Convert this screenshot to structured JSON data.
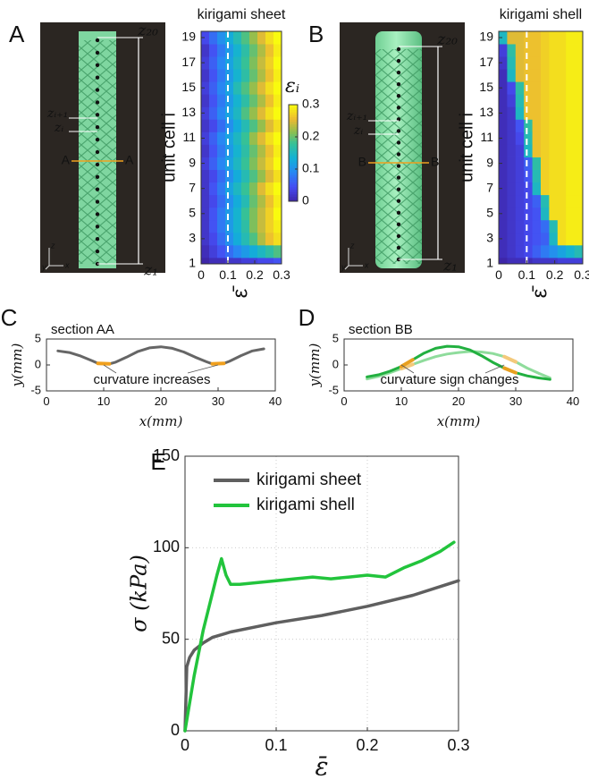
{
  "photos": [
    {
      "panel": "A",
      "top_label": "z₂₀",
      "upper_label": "zᵢ₊₁",
      "lower_label": "zᵢ",
      "section_left": "A",
      "section_right": "A",
      "bottom_label": "z₁",
      "axes": [
        "z",
        "y",
        "x"
      ]
    },
    {
      "panel": "B",
      "top_label": "z₂₀",
      "upper_label": "zᵢ₊₁",
      "lower_label": "zᵢ",
      "section_left": "B",
      "section_right": "B",
      "bottom_label": "z₁",
      "axes": [
        "z",
        "y",
        "x"
      ]
    }
  ],
  "chart_data": [
    {
      "type": "heatmap",
      "title": "kirigami sheet",
      "title_color": "#888888",
      "ylabel": "unit cell i",
      "xlabel": "ε̄",
      "x": [
        0.015,
        0.045,
        0.075,
        0.105,
        0.135,
        0.165,
        0.195,
        0.225,
        0.255,
        0.285
      ],
      "y": [
        1,
        2,
        3,
        4,
        5,
        6,
        7,
        8,
        9,
        10,
        11,
        12,
        13,
        14,
        15,
        16,
        17,
        18,
        19
      ],
      "xlim": [
        0,
        0.3
      ],
      "ylim": [
        1,
        19.5
      ],
      "xticks": [
        0,
        0.1,
        0.2,
        0.3
      ],
      "yticks": [
        1,
        3,
        5,
        7,
        9,
        11,
        13,
        15,
        17,
        19
      ],
      "clim": [
        0,
        0.3
      ],
      "marker_x": 0.1,
      "colorbar": {
        "label": "εᵢ",
        "ticks": [
          0,
          0.1,
          0.2,
          0.3
        ]
      },
      "z": [
        [
          0,
          0.01,
          0.01,
          0.02,
          0.02,
          0.03,
          0.03,
          0.04,
          0.04,
          0.05
        ],
        [
          0.01,
          0.03,
          0.05,
          0.07,
          0.09,
          0.11,
          0.13,
          0.15,
          0.17,
          0.19
        ],
        [
          0.02,
          0.04,
          0.07,
          0.1,
          0.13,
          0.16,
          0.19,
          0.23,
          0.26,
          0.28
        ],
        [
          0.02,
          0.05,
          0.08,
          0.11,
          0.14,
          0.17,
          0.21,
          0.24,
          0.27,
          0.29
        ],
        [
          0.02,
          0.05,
          0.08,
          0.11,
          0.14,
          0.18,
          0.21,
          0.24,
          0.27,
          0.3
        ],
        [
          0.02,
          0.04,
          0.07,
          0.1,
          0.13,
          0.16,
          0.2,
          0.23,
          0.26,
          0.29
        ],
        [
          0.02,
          0.05,
          0.08,
          0.12,
          0.15,
          0.18,
          0.21,
          0.25,
          0.28,
          0.3
        ],
        [
          0.02,
          0.04,
          0.07,
          0.1,
          0.13,
          0.16,
          0.19,
          0.22,
          0.25,
          0.28
        ],
        [
          0.03,
          0.06,
          0.09,
          0.12,
          0.15,
          0.18,
          0.21,
          0.24,
          0.27,
          0.3
        ],
        [
          0.02,
          0.05,
          0.08,
          0.11,
          0.14,
          0.17,
          0.2,
          0.23,
          0.26,
          0.29
        ],
        [
          0.03,
          0.06,
          0.09,
          0.12,
          0.15,
          0.18,
          0.22,
          0.25,
          0.28,
          0.3
        ],
        [
          0.02,
          0.04,
          0.07,
          0.1,
          0.13,
          0.16,
          0.19,
          0.22,
          0.25,
          0.28
        ],
        [
          0.03,
          0.06,
          0.09,
          0.12,
          0.15,
          0.19,
          0.22,
          0.25,
          0.28,
          0.3
        ],
        [
          0.02,
          0.05,
          0.08,
          0.11,
          0.14,
          0.17,
          0.2,
          0.23,
          0.26,
          0.29
        ],
        [
          0.03,
          0.06,
          0.09,
          0.12,
          0.16,
          0.19,
          0.22,
          0.25,
          0.28,
          0.3
        ],
        [
          0.02,
          0.05,
          0.08,
          0.11,
          0.14,
          0.17,
          0.2,
          0.23,
          0.26,
          0.29
        ],
        [
          0.03,
          0.06,
          0.09,
          0.12,
          0.15,
          0.18,
          0.21,
          0.24,
          0.27,
          0.3
        ],
        [
          0.02,
          0.05,
          0.08,
          0.11,
          0.14,
          0.17,
          0.2,
          0.23,
          0.26,
          0.29
        ],
        [
          0.04,
          0.07,
          0.1,
          0.13,
          0.16,
          0.19,
          0.22,
          0.25,
          0.28,
          0.3
        ]
      ]
    },
    {
      "type": "heatmap",
      "title": "kirigami shell",
      "title_color": "#22c43c",
      "ylabel": "unit cell i",
      "xlabel": "ε̄",
      "x": [
        0.015,
        0.045,
        0.075,
        0.105,
        0.135,
        0.165,
        0.195,
        0.225,
        0.255,
        0.285
      ],
      "y": [
        1,
        2,
        3,
        4,
        5,
        6,
        7,
        8,
        9,
        10,
        11,
        12,
        13,
        14,
        15,
        16,
        17,
        18,
        19
      ],
      "xlim": [
        0,
        0.3
      ],
      "ylim": [
        1,
        19.5
      ],
      "xticks": [
        0,
        0.1,
        0.2,
        0.3
      ],
      "yticks": [
        1,
        3,
        5,
        7,
        9,
        11,
        13,
        15,
        17,
        19
      ],
      "clim": [
        0,
        0.3
      ],
      "marker_x": 0.1,
      "z": [
        [
          0,
          0.01,
          0.01,
          0.01,
          0.02,
          0.02,
          0.02,
          0.03,
          0.03,
          0.03
        ],
        [
          0.01,
          0.02,
          0.03,
          0.04,
          0.06,
          0.08,
          0.1,
          0.12,
          0.14,
          0.16
        ],
        [
          0.01,
          0.02,
          0.03,
          0.04,
          0.05,
          0.06,
          0.15,
          0.28,
          0.29,
          0.29
        ],
        [
          0.01,
          0.02,
          0.03,
          0.04,
          0.05,
          0.07,
          0.16,
          0.28,
          0.29,
          0.29
        ],
        [
          0.01,
          0.02,
          0.03,
          0.04,
          0.05,
          0.15,
          0.28,
          0.28,
          0.29,
          0.29
        ],
        [
          0.01,
          0.02,
          0.03,
          0.04,
          0.06,
          0.16,
          0.28,
          0.28,
          0.29,
          0.29
        ],
        [
          0.01,
          0.02,
          0.03,
          0.04,
          0.15,
          0.27,
          0.28,
          0.28,
          0.29,
          0.29
        ],
        [
          0.01,
          0.02,
          0.03,
          0.05,
          0.16,
          0.27,
          0.28,
          0.28,
          0.29,
          0.29
        ],
        [
          0.01,
          0.02,
          0.03,
          0.06,
          0.17,
          0.27,
          0.28,
          0.28,
          0.29,
          0.29
        ],
        [
          0.01,
          0.02,
          0.03,
          0.15,
          0.26,
          0.27,
          0.28,
          0.28,
          0.29,
          0.29
        ],
        [
          0.01,
          0.02,
          0.04,
          0.16,
          0.26,
          0.27,
          0.28,
          0.28,
          0.29,
          0.29
        ],
        [
          0.01,
          0.02,
          0.05,
          0.17,
          0.26,
          0.27,
          0.28,
          0.28,
          0.29,
          0.29
        ],
        [
          0.01,
          0.02,
          0.15,
          0.26,
          0.26,
          0.27,
          0.28,
          0.28,
          0.29,
          0.29
        ],
        [
          0.01,
          0.03,
          0.16,
          0.26,
          0.26,
          0.27,
          0.28,
          0.28,
          0.29,
          0.29
        ],
        [
          0.01,
          0.04,
          0.17,
          0.26,
          0.26,
          0.27,
          0.28,
          0.28,
          0.29,
          0.29
        ],
        [
          0.01,
          0.15,
          0.25,
          0.26,
          0.26,
          0.27,
          0.28,
          0.28,
          0.29,
          0.29
        ],
        [
          0.02,
          0.16,
          0.25,
          0.26,
          0.26,
          0.27,
          0.28,
          0.28,
          0.29,
          0.29
        ],
        [
          0.03,
          0.17,
          0.25,
          0.26,
          0.26,
          0.27,
          0.28,
          0.28,
          0.29,
          0.29
        ],
        [
          0.15,
          0.25,
          0.25,
          0.26,
          0.26,
          0.27,
          0.28,
          0.28,
          0.29,
          0.29
        ]
      ]
    },
    {
      "type": "line",
      "panel": "C",
      "title": "section AA",
      "xlabel": "x(mm)",
      "ylabel": "y(mm)",
      "annotation": "curvature increases",
      "xlim": [
        0,
        40
      ],
      "ylim": [
        -5,
        5
      ],
      "xticks": [
        0,
        10,
        20,
        30,
        40
      ],
      "yticks": [
        -5,
        0,
        5
      ],
      "x": [
        2,
        4,
        6,
        8,
        9,
        11,
        12,
        14,
        16,
        18,
        20,
        22,
        24,
        26,
        28,
        29,
        31,
        32,
        34,
        36,
        38
      ],
      "series": [
        {
          "color": "#666666",
          "values": [
            2.7,
            2.4,
            1.7,
            0.8,
            0.3,
            0.2,
            0.5,
            1.5,
            2.6,
            3.3,
            3.5,
            3.2,
            2.5,
            1.5,
            0.6,
            0.2,
            0.3,
            0.7,
            1.8,
            2.7,
            3.1
          ]
        },
        {
          "color": "#f0a01e",
          "values": [
            null,
            null,
            null,
            null,
            0.3,
            0.2,
            null,
            null,
            null,
            null,
            null,
            null,
            null,
            null,
            null,
            0.2,
            0.3,
            null,
            null,
            null,
            null
          ]
        }
      ]
    },
    {
      "type": "line",
      "panel": "D",
      "title": "section BB",
      "xlabel": "x(mm)",
      "ylabel": "y(mm)",
      "annotation": "curvature sign changes",
      "xlim": [
        0,
        40
      ],
      "ylim": [
        -5,
        5
      ],
      "xticks": [
        0,
        10,
        20,
        30,
        40
      ],
      "yticks": [
        -5,
        0,
        5
      ],
      "x": [
        4,
        6,
        8,
        10,
        12,
        14,
        16,
        18,
        20,
        22,
        24,
        26,
        28,
        30,
        32,
        34,
        36
      ],
      "series": [
        {
          "color": "#8fdc9c",
          "values": [
            -2.7,
            -2.2,
            -1.5,
            -0.7,
            0.1,
            0.9,
            1.6,
            2.1,
            2.4,
            2.6,
            2.5,
            2.2,
            1.6,
            0.6,
            -0.6,
            -1.6,
            -2.5
          ]
        },
        {
          "color": "#22b040",
          "values": [
            -2.3,
            -1.9,
            -1.2,
            -0.3,
            1.0,
            2.3,
            3.2,
            3.6,
            3.5,
            2.9,
            1.8,
            0.5,
            -0.6,
            -1.5,
            -2.1,
            -2.5,
            -2.8
          ]
        },
        {
          "color": "#f3c97a",
          "values": [
            null,
            null,
            null,
            -0.7,
            0.1,
            null,
            null,
            null,
            null,
            null,
            null,
            null,
            1.6,
            0.6,
            null,
            null,
            null
          ]
        },
        {
          "color": "#e8a020",
          "values": [
            null,
            null,
            null,
            -0.3,
            1.0,
            null,
            null,
            null,
            null,
            null,
            null,
            null,
            -0.6,
            -1.5,
            null,
            null,
            null
          ]
        }
      ]
    },
    {
      "type": "line",
      "panel": "E",
      "xlabel": "ε̄",
      "ylabel": "σ (kPa)",
      "legend": "upper left",
      "grid": true,
      "xlim": [
        0,
        0.3
      ],
      "ylim": [
        0,
        150
      ],
      "xticks": [
        0,
        0.1,
        0.2,
        0.3
      ],
      "yticks": [
        0,
        50,
        100,
        150
      ],
      "series": [
        {
          "name": "kirigami sheet",
          "color": "#5f5f5f",
          "x": [
            0,
            0.002,
            0.005,
            0.01,
            0.02,
            0.03,
            0.05,
            0.08,
            0.1,
            0.15,
            0.2,
            0.25,
            0.3
          ],
          "values": [
            0,
            35,
            40,
            44,
            48,
            51,
            54,
            57,
            59,
            63,
            68,
            74,
            82
          ]
        },
        {
          "name": "kirigami shell",
          "color": "#22c43c",
          "x": [
            0,
            0.005,
            0.01,
            0.02,
            0.03,
            0.035,
            0.04,
            0.045,
            0.05,
            0.06,
            0.08,
            0.1,
            0.12,
            0.14,
            0.16,
            0.18,
            0.2,
            0.22,
            0.24,
            0.26,
            0.28,
            0.295
          ],
          "values": [
            0,
            15,
            30,
            55,
            75,
            85,
            94,
            85,
            80,
            80,
            81,
            82,
            83,
            84,
            83,
            84,
            85,
            84,
            89,
            93,
            98,
            103
          ]
        }
      ]
    }
  ]
}
